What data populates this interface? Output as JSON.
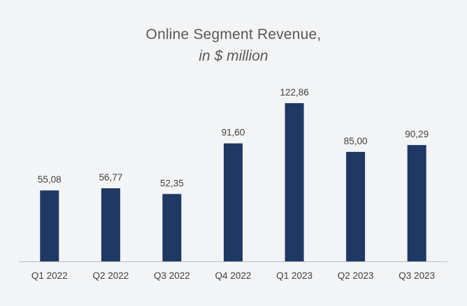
{
  "chart_data": {
    "type": "bar",
    "title": "Online Segment Revenue,",
    "subtitle": "in $ million",
    "xlabel": "",
    "ylabel": "",
    "categories": [
      "Q1 2022",
      "Q2 2022",
      "Q3 2022",
      "Q4 2022",
      "Q1 2023",
      "Q2 2023",
      "Q3 2023"
    ],
    "values": [
      55.08,
      56.77,
      52.35,
      91.6,
      122.86,
      85.0,
      90.29
    ],
    "value_labels": [
      "55,08",
      "56,77",
      "52,35",
      "91,60",
      "122,86",
      "85,00",
      "90,29"
    ],
    "ylim": [
      0,
      130
    ],
    "grid": false,
    "legend": "none",
    "bar_color": "#1f3864",
    "axis_color": "#bfbfbf",
    "background": "#f2f4f6"
  }
}
